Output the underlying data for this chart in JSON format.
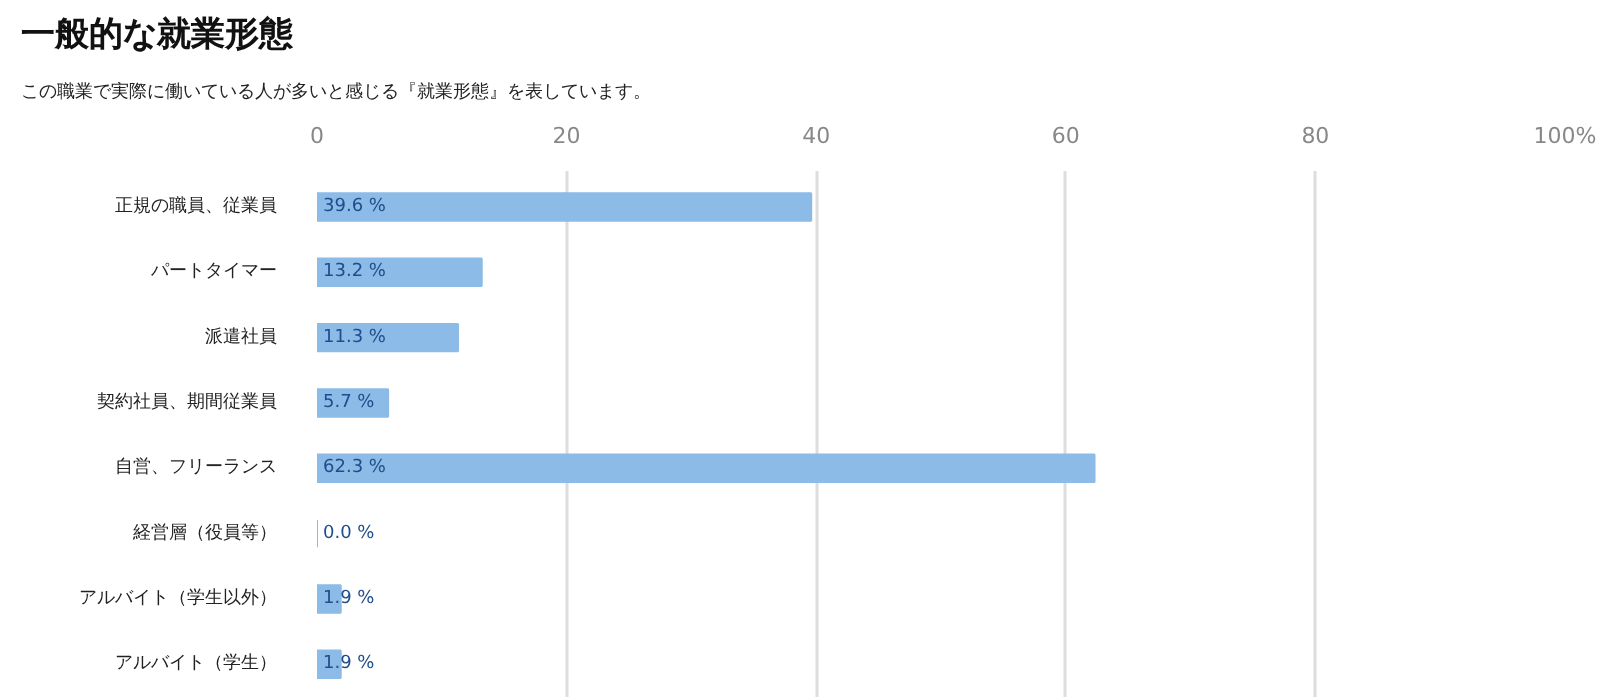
{
  "chart_data": {
    "type": "bar",
    "orientation": "horizontal",
    "title": "一般的な就業形態",
    "subtitle": "この職業で実際に働いている人が多いと感じる『就業形態』を表しています。",
    "categories": [
      "正規の職員、従業員",
      "パートタイマー",
      "派遣社員",
      "契約社員、期間従業員",
      "自営、フリーランス",
      "経営層（役員等）",
      "アルバイト（学生以外）",
      "アルバイト（学生）"
    ],
    "values": [
      39.6,
      13.2,
      11.3,
      5.7,
      62.3,
      0.0,
      1.9,
      1.9
    ],
    "value_labels": [
      "39.6 %",
      "13.2 %",
      "11.3 %",
      "5.7 %",
      "62.3 %",
      "0.0 %",
      "1.9 %",
      "1.9 %"
    ],
    "color": "#8bbbe6",
    "xlim": [
      0,
      100
    ],
    "xticks": [
      0,
      20,
      40,
      60,
      80,
      {
        "value": 100,
        "label": "100%"
      }
    ],
    "grid": "x"
  }
}
